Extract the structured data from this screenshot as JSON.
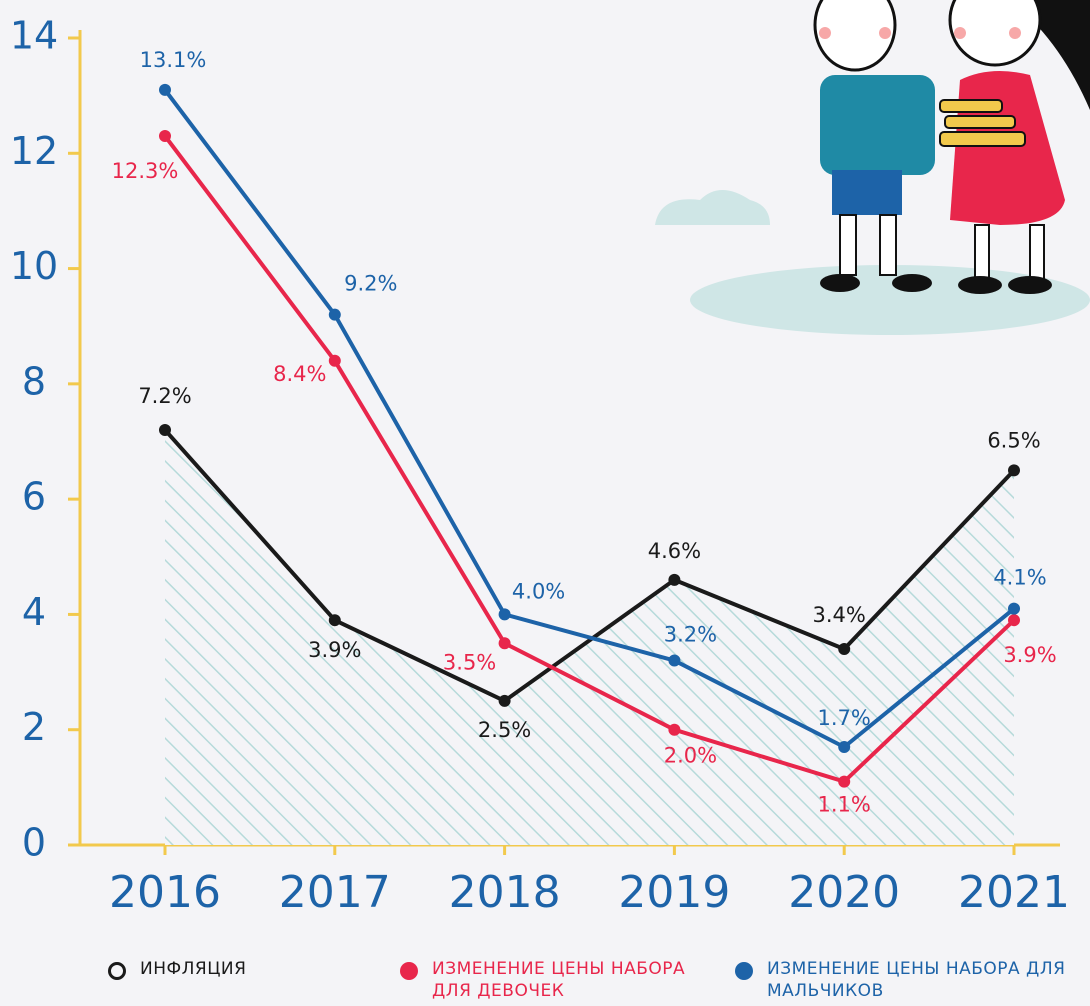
{
  "chart_data": {
    "type": "line",
    "categories": [
      "2016",
      "2017",
      "2018",
      "2019",
      "2020",
      "2021"
    ],
    "ylim": [
      0,
      14
    ],
    "yticks": [
      0,
      2,
      4,
      6,
      8,
      10,
      12,
      14
    ],
    "series": [
      {
        "name": "ИНФЛЯЦИЯ",
        "color": "#1a1a1a",
        "area": true,
        "values": [
          7.2,
          3.9,
          2.5,
          4.6,
          3.4,
          6.5
        ],
        "value_labels": [
          "7.2%",
          "3.9%",
          "2.5%",
          "4.6%",
          "3.4%",
          "6.5%"
        ]
      },
      {
        "name": "ИЗМЕНЕНИЕ ЦЕНЫ НАБОРА ДЛЯ ДЕВОЧЕК",
        "color": "#e8264b",
        "values": [
          12.3,
          8.4,
          3.5,
          2.0,
          1.1,
          3.9
        ],
        "value_labels": [
          "12.3%",
          "8.4%",
          "3.5%",
          "2.0%",
          "1.1%",
          "3.9%"
        ]
      },
      {
        "name": "ИЗМЕНЕНИЕ ЦЕНЫ НАБОРА ДЛЯ МАЛЬЧИКОВ",
        "color": "#1d63a8",
        "values": [
          13.1,
          9.2,
          4.0,
          3.2,
          1.7,
          4.1
        ],
        "value_labels": [
          "13.1%",
          "9.2%",
          "4.0%",
          "3.2%",
          "1.7%",
          "4.1%"
        ]
      }
    ]
  }
}
